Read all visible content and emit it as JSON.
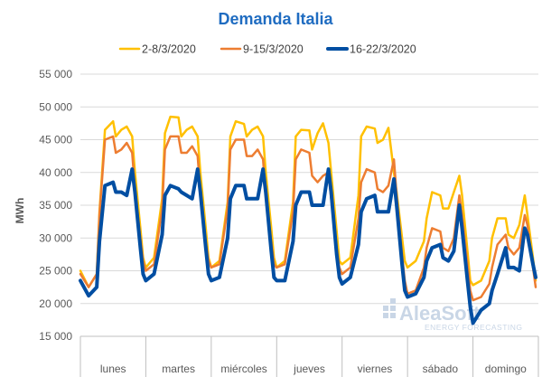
{
  "chart_data": {
    "type": "line",
    "title": "Demanda Italia",
    "ylabel": "MWh",
    "xlabel": "",
    "ylim": [
      15000,
      55000
    ],
    "yticks": [
      15000,
      20000,
      25000,
      30000,
      35000,
      40000,
      45000,
      50000,
      55000
    ],
    "ytick_labels": [
      "15 000",
      "20 000",
      "25 000",
      "30 000",
      "35 000",
      "40 000",
      "45 000",
      "50 000",
      "55 000"
    ],
    "categories": [
      "lunes",
      "martes",
      "miércoles",
      "jueves",
      "viernes",
      "sábado",
      "domingo"
    ],
    "grid": "horizontal",
    "legend_position": "top",
    "hour_template": [
      0,
      3,
      6,
      7,
      9,
      12,
      13,
      15,
      17,
      19,
      20,
      22,
      23
    ],
    "series": [
      {
        "name": "2-8/3/2020",
        "color": "#ffc000",
        "days": [
          [
            25000,
            22500,
            24500,
            34000,
            46500,
            47800,
            45500,
            46500,
            47000,
            45500,
            40000,
            31500,
            27000
          ],
          [
            25500,
            27000,
            36000,
            46000,
            48500,
            48400,
            45500,
            46500,
            47000,
            45500,
            40000,
            31500,
            27000
          ],
          [
            25500,
            26500,
            35500,
            45500,
            47800,
            47400,
            45500,
            46500,
            47000,
            45500,
            40000,
            31500,
            27000
          ],
          [
            25500,
            26500,
            35500,
            45500,
            46500,
            46400,
            43500,
            46000,
            47500,
            44500,
            40000,
            31000,
            26500
          ],
          [
            26000,
            27000,
            36500,
            45500,
            47000,
            46700,
            44500,
            45000,
            46800,
            40000,
            37000,
            30000,
            26500
          ],
          [
            25500,
            26500,
            29500,
            33000,
            37000,
            36500,
            34500,
            34500,
            37000,
            39500,
            36500,
            28000,
            23500
          ],
          [
            22800,
            23500,
            26500,
            30000,
            33000,
            33000,
            30500,
            30000,
            32000,
            36500,
            33500,
            27000,
            23500
          ]
        ]
      },
      {
        "name": "9-15/3/2020",
        "color": "#ed7d31",
        "days": [
          [
            24500,
            22500,
            24500,
            33500,
            45000,
            45500,
            43000,
            43500,
            44500,
            43000,
            37500,
            30000,
            26500
          ],
          [
            25000,
            26000,
            34500,
            43500,
            45500,
            45500,
            43000,
            43000,
            44000,
            42500,
            37000,
            29500,
            26500
          ],
          [
            25500,
            26000,
            34500,
            43500,
            45000,
            45000,
            42500,
            42500,
            43500,
            42000,
            36500,
            29500,
            26000
          ],
          [
            25500,
            26000,
            34000,
            42000,
            43500,
            43000,
            39500,
            38500,
            39500,
            40000,
            36000,
            28500,
            25500
          ],
          [
            24500,
            25500,
            33000,
            38500,
            40500,
            40000,
            37500,
            37000,
            38000,
            42000,
            36500,
            27500,
            23500
          ],
          [
            21500,
            22000,
            25500,
            28500,
            31500,
            31000,
            28500,
            28000,
            30000,
            36500,
            33500,
            26000,
            22000
          ],
          [
            20500,
            21000,
            23000,
            25500,
            29000,
            30500,
            28500,
            27500,
            28500,
            33500,
            32000,
            25500,
            22500
          ]
        ]
      },
      {
        "name": "16-22/3/2020",
        "color": "#004ea2",
        "days": [
          [
            23500,
            21200,
            22500,
            29500,
            38000,
            38500,
            37000,
            37000,
            36500,
            40500,
            37000,
            28500,
            24500
          ],
          [
            23500,
            24500,
            30500,
            36500,
            38000,
            37500,
            37000,
            36500,
            36000,
            40500,
            37000,
            28500,
            24500
          ],
          [
            23500,
            24000,
            30000,
            36000,
            38000,
            38000,
            36000,
            36000,
            36000,
            40500,
            37000,
            28000,
            24000
          ],
          [
            23500,
            23500,
            29500,
            35000,
            37000,
            37000,
            35000,
            35000,
            35000,
            40500,
            37000,
            27500,
            24000
          ],
          [
            23000,
            24000,
            29000,
            34000,
            36000,
            36500,
            34000,
            34000,
            34000,
            39000,
            35000,
            26000,
            22000
          ],
          [
            21000,
            21500,
            24000,
            26500,
            28500,
            29000,
            27000,
            26500,
            28000,
            35000,
            31500,
            23500,
            19500
          ],
          [
            17000,
            19000,
            20000,
            22000,
            24500,
            28500,
            25500,
            25500,
            25000,
            31500,
            30500,
            26000,
            24000
          ]
        ]
      }
    ]
  },
  "watermark": {
    "brand": "AleaSoft",
    "tagline": "ENERGY FORECASTING"
  }
}
